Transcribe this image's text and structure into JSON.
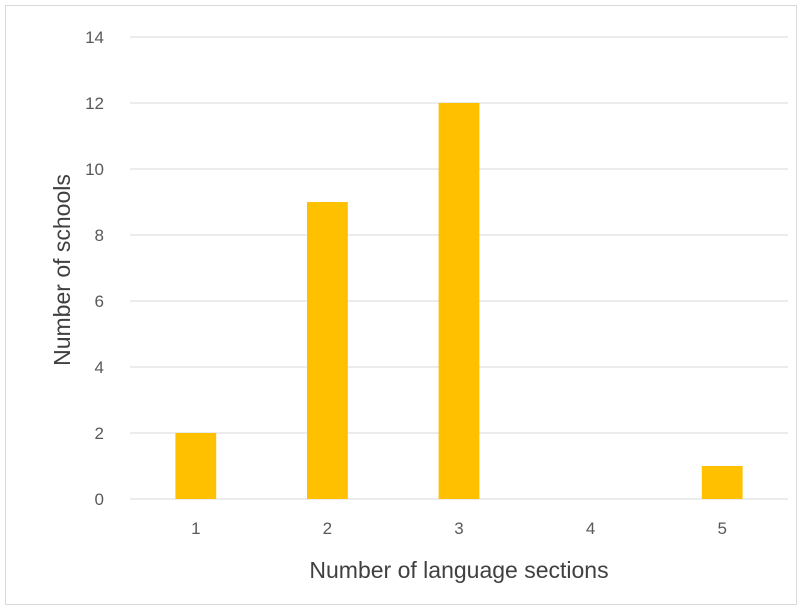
{
  "chart_data": {
    "type": "bar",
    "title": "",
    "xlabel": "Number of language sections",
    "ylabel": "Number of schools",
    "categories": [
      "1",
      "2",
      "3",
      "4",
      "5"
    ],
    "values": [
      2,
      9,
      12,
      0,
      1
    ],
    "ylim": [
      0,
      14
    ],
    "yticks": [
      0,
      2,
      4,
      6,
      8,
      10,
      12,
      14
    ],
    "grid": true,
    "legend": "none",
    "bar_color": "#FFC000",
    "grid_color": "#D9D9D9"
  }
}
